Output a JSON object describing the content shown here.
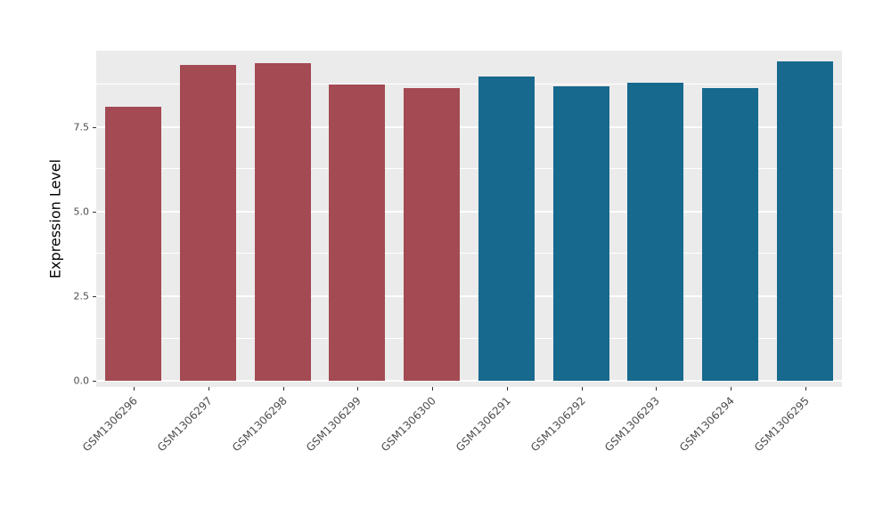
{
  "figure": {
    "background": "#FFFFFF",
    "panel_background": "#EBEBEB",
    "gridline_color": "#FFFFFF",
    "tick_label_color": "#4D4D4D",
    "axis_title_color": "#000000"
  },
  "chart_data": {
    "type": "bar",
    "title": "",
    "xlabel": "",
    "ylabel": "Expression Level",
    "categories": [
      "GSM1306296",
      "GSM1306297",
      "GSM1306298",
      "GSM1306299",
      "GSM1306300",
      "GSM1306291",
      "GSM1306292",
      "GSM1306293",
      "GSM1306294",
      "GSM1306295"
    ],
    "values": [
      8.1,
      9.35,
      9.4,
      8.75,
      8.65,
      9.0,
      8.7,
      8.8,
      8.65,
      9.45
    ],
    "bar_colors": [
      "#A34A52",
      "#A34A52",
      "#A34A52",
      "#A34A52",
      "#A34A52",
      "#17698E",
      "#17698E",
      "#17698E",
      "#17698E",
      "#17698E"
    ],
    "ylim": [
      0,
      9.76
    ],
    "yticks": [
      0,
      2.5,
      5,
      7.5
    ],
    "ytick_labels": [
      "0.0",
      "2.5",
      "5.0",
      "7.5"
    ],
    "minor_yticks": [
      1.25,
      3.75,
      6.25,
      8.75
    ],
    "grid": true,
    "legend": "none",
    "bar_width_ratio": 0.75
  }
}
